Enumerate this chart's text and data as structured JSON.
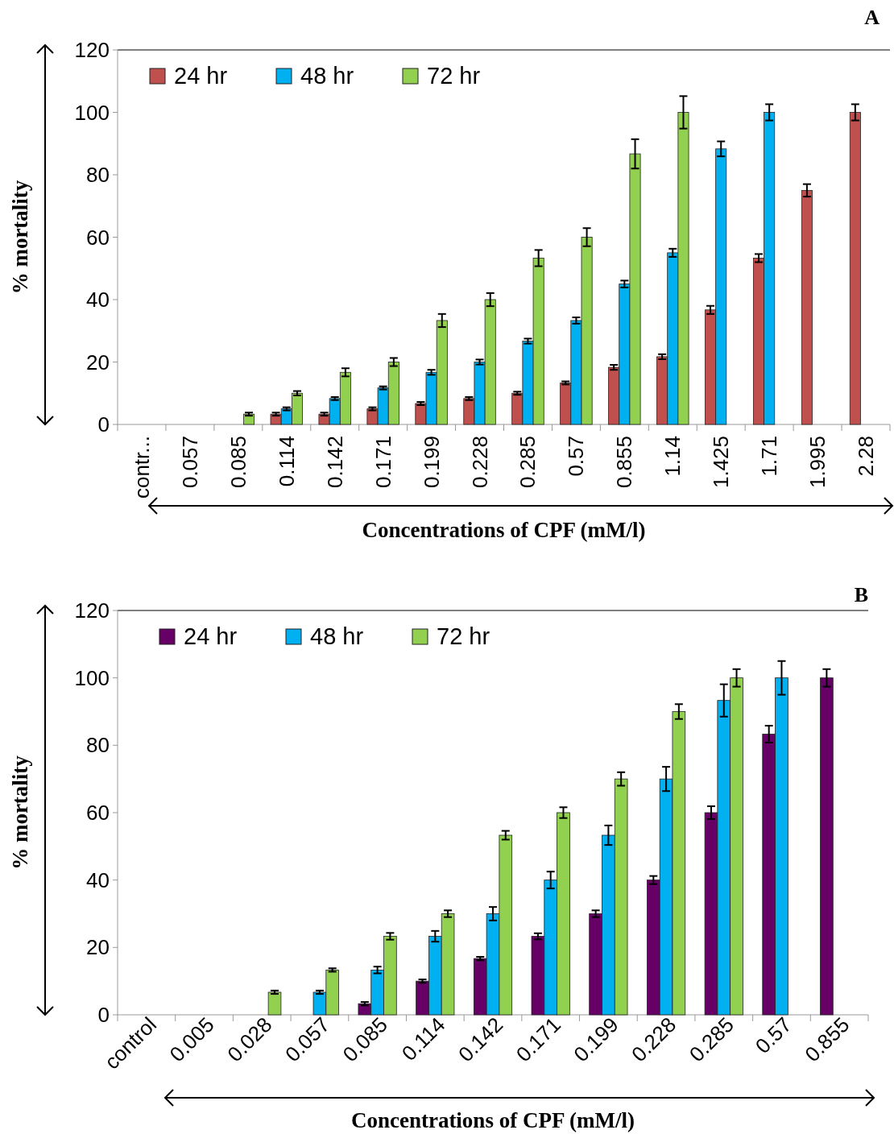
{
  "chart_data": [
    {
      "type": "bar",
      "annotations": [
        "A"
      ],
      "xlabel": "Concentrations of CPF (mM/l)",
      "ylabel": "% mortality",
      "categories": [
        "contr...",
        "0.057",
        "0.085",
        "0.114",
        "0.142",
        "0.171",
        "0.199",
        "0.228",
        "0.285",
        "0.57",
        "0.855",
        "1.14",
        "1.425",
        "1.71",
        "1.995",
        "2.28"
      ],
      "series": [
        {
          "name": "24 hr",
          "color": "#c0504d",
          "values": [
            0,
            0,
            0,
            3.3,
            3.3,
            5,
            6.7,
            8.3,
            10,
            13.3,
            18.3,
            21.7,
            36.7,
            53.3,
            75,
            100
          ],
          "errors": [
            null,
            null,
            null,
            0.5,
            0.5,
            0.5,
            0.5,
            0.5,
            0.5,
            0.5,
            0.8,
            0.8,
            1.3,
            1.3,
            2,
            2.6
          ]
        },
        {
          "name": "48 hr",
          "color": "#00b0f0",
          "values": [
            0,
            0,
            0,
            5,
            8.3,
            11.7,
            16.7,
            20,
            26.7,
            33.3,
            45,
            55,
            88.3,
            100,
            null,
            null
          ],
          "errors": [
            null,
            null,
            null,
            0.5,
            0.5,
            0.5,
            0.8,
            0.8,
            0.8,
            1,
            1.1,
            1.3,
            2.4,
            2.6,
            null,
            null
          ]
        },
        {
          "name": "72 hr",
          "color": "#92d050",
          "values": [
            0,
            0,
            3.3,
            10,
            16.7,
            20,
            33.3,
            40,
            53.3,
            60,
            86.7,
            100,
            null,
            null,
            null,
            null
          ],
          "errors": [
            null,
            null,
            0.5,
            0.7,
            1.3,
            1.3,
            2.1,
            2.1,
            2.6,
            2.9,
            4.7,
            5.2,
            null,
            null,
            null,
            null
          ]
        }
      ],
      "ylim": [
        0,
        120
      ],
      "yticks": [
        0,
        20,
        40,
        60,
        80,
        100,
        120
      ],
      "grid": false,
      "legend": "top left"
    },
    {
      "type": "bar",
      "annotations": [
        "B"
      ],
      "xlabel": "Concentrations of CPF (mM/l)",
      "ylabel": "% mortality",
      "categories": [
        "control",
        "0.005",
        "0.028",
        "0.057",
        "0.085",
        "0.114",
        "0.142",
        "0.171",
        "0.199",
        "0.228",
        "0.285",
        "0.57",
        "0.855"
      ],
      "series": [
        {
          "name": "24 hr",
          "color": "#660066",
          "values": [
            0,
            0,
            0,
            0,
            3.3,
            10,
            16.7,
            23.3,
            30,
            40,
            60,
            83.3,
            100
          ],
          "errors": [
            null,
            null,
            null,
            null,
            0.5,
            0.5,
            0.5,
            0.9,
            1,
            1.2,
            1.9,
            2.5,
            2.6
          ]
        },
        {
          "name": "48 hr",
          "color": "#00b0f0",
          "values": [
            0,
            0,
            0,
            6.7,
            13.3,
            23.3,
            30,
            40,
            53.3,
            70,
            93.3,
            100,
            null
          ],
          "errors": [
            null,
            null,
            null,
            0.5,
            1,
            1.6,
            2,
            2.5,
            2.9,
            3.6,
            4.8,
            5,
            null
          ]
        },
        {
          "name": "72 hr",
          "color": "#92d050",
          "values": [
            0,
            0,
            6.7,
            13.3,
            23.3,
            30,
            53.3,
            60,
            70,
            90,
            100,
            null,
            null
          ],
          "errors": [
            null,
            null,
            0.5,
            0.5,
            1,
            1,
            1.3,
            1.6,
            2,
            2.2,
            2.6,
            null,
            null
          ]
        }
      ],
      "ylim": [
        0,
        120
      ],
      "yticks": [
        0,
        20,
        40,
        60,
        80,
        100,
        120
      ],
      "grid": false,
      "legend": "top left"
    }
  ]
}
